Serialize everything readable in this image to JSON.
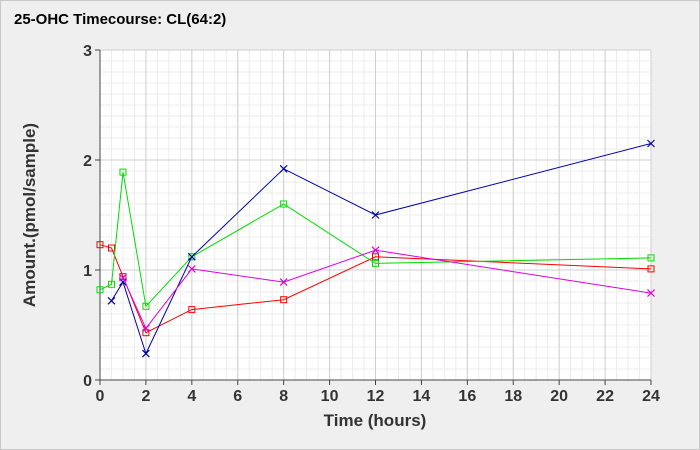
{
  "chart_data": {
    "type": "line",
    "title": "25-OHC Timecourse: CL(64:2)",
    "xlabel": "Time (hours)",
    "ylabel": "Amount.(pmol/sample)",
    "xlim": [
      0,
      24
    ],
    "ylim": [
      0,
      3
    ],
    "x_ticks": [
      0,
      2,
      4,
      6,
      8,
      10,
      12,
      14,
      16,
      18,
      20,
      22,
      24
    ],
    "y_ticks": [
      0,
      1,
      2,
      3
    ],
    "x_minor_step": 0.5,
    "y_minor_step": 0.1,
    "grid": true,
    "series": [
      {
        "color": "#ff0000",
        "marker": "square",
        "x": [
          0,
          0.5,
          1,
          2,
          4,
          8,
          12,
          24
        ],
        "y": [
          1.23,
          1.2,
          0.94,
          0.43,
          0.64,
          0.73,
          1.12,
          1.01
        ]
      },
      {
        "color": "#00dd00",
        "marker": "square",
        "x": [
          0,
          0.5,
          1,
          2,
          4,
          8,
          12,
          24
        ],
        "y": [
          0.82,
          0.87,
          1.89,
          0.67,
          1.12,
          1.6,
          1.06,
          1.11
        ]
      },
      {
        "color": "#0000aa",
        "marker": "cross",
        "x": [
          0.5,
          1,
          2,
          4,
          8,
          12,
          24
        ],
        "y": [
          0.72,
          0.89,
          0.24,
          1.12,
          1.92,
          1.5,
          2.15
        ]
      },
      {
        "color": "#dd00dd",
        "marker": "cross",
        "x": [
          1,
          2,
          4,
          8,
          12,
          24
        ],
        "y": [
          0.93,
          0.47,
          1.01,
          0.89,
          1.18,
          0.79
        ]
      }
    ]
  }
}
